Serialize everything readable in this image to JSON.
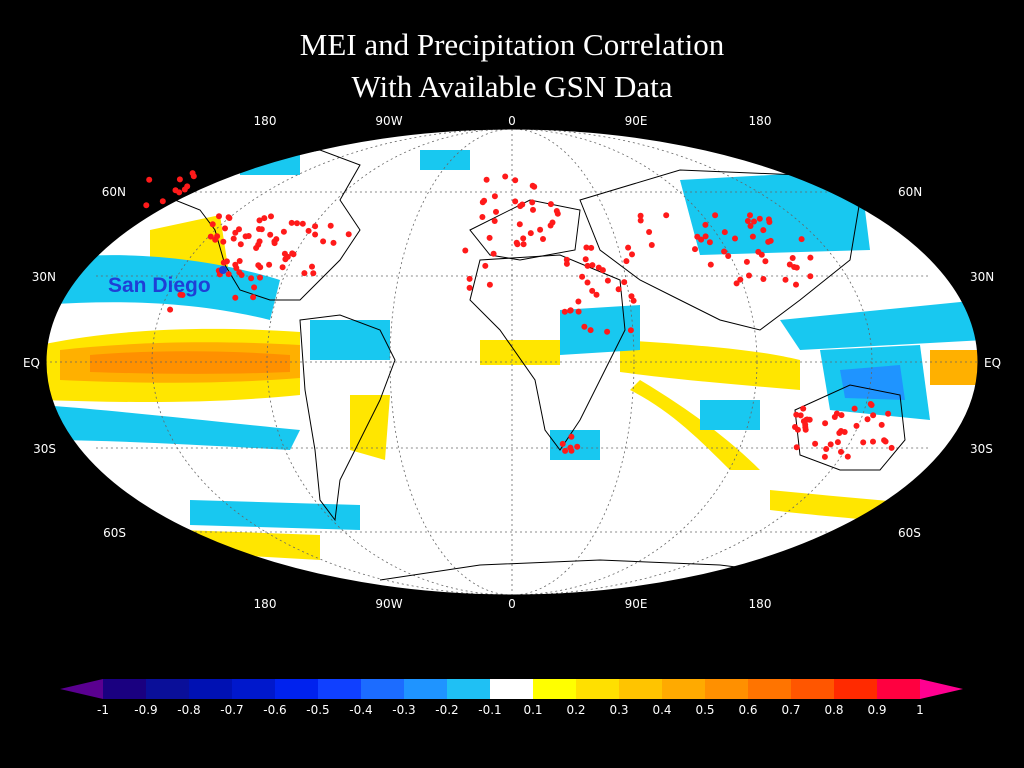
{
  "title_line1": "MEI and Precipitation Correlation",
  "title_line2": "With Available GSN Data",
  "lon_labels": [
    "180",
    "90W",
    "0",
    "90E",
    "180"
  ],
  "lat_labels_left": [
    "60N",
    "30N",
    "EQ",
    "30S",
    "60S"
  ],
  "lat_labels_right": [
    "60N",
    "30N",
    "EQ",
    "30S",
    "60S"
  ],
  "highlight_station": "San Diego",
  "colorbar": {
    "labels": [
      "-1",
      "-0.9",
      "-0.8",
      "-0.7",
      "-0.6",
      "-0.5",
      "-0.4",
      "-0.3",
      "-0.2",
      "-0.1",
      "0.1",
      "0.2",
      "0.3",
      "0.4",
      "0.5",
      "0.6",
      "0.7",
      "0.8",
      "0.9",
      "1"
    ],
    "colors": [
      "#1a0080",
      "#0a0f99",
      "#0011b3",
      "#0018cc",
      "#0022ee",
      "#1040ff",
      "#1c6cff",
      "#1f94ff",
      "#1fc0f4",
      "#ffffff",
      "#ffff00",
      "#ffe000",
      "#ffc400",
      "#ffaa00",
      "#ff9000",
      "#ff7400",
      "#ff5600",
      "#ff2a00",
      "#ff0040"
    ],
    "under_color": "#5a0090",
    "over_color": "#ff0090"
  },
  "colors": {
    "positive": "#ffe600",
    "negative": "#18c8f0",
    "strong_positive": "#ff9800",
    "station": "#ff1a1a",
    "highlight": "#1f3fd6"
  }
}
